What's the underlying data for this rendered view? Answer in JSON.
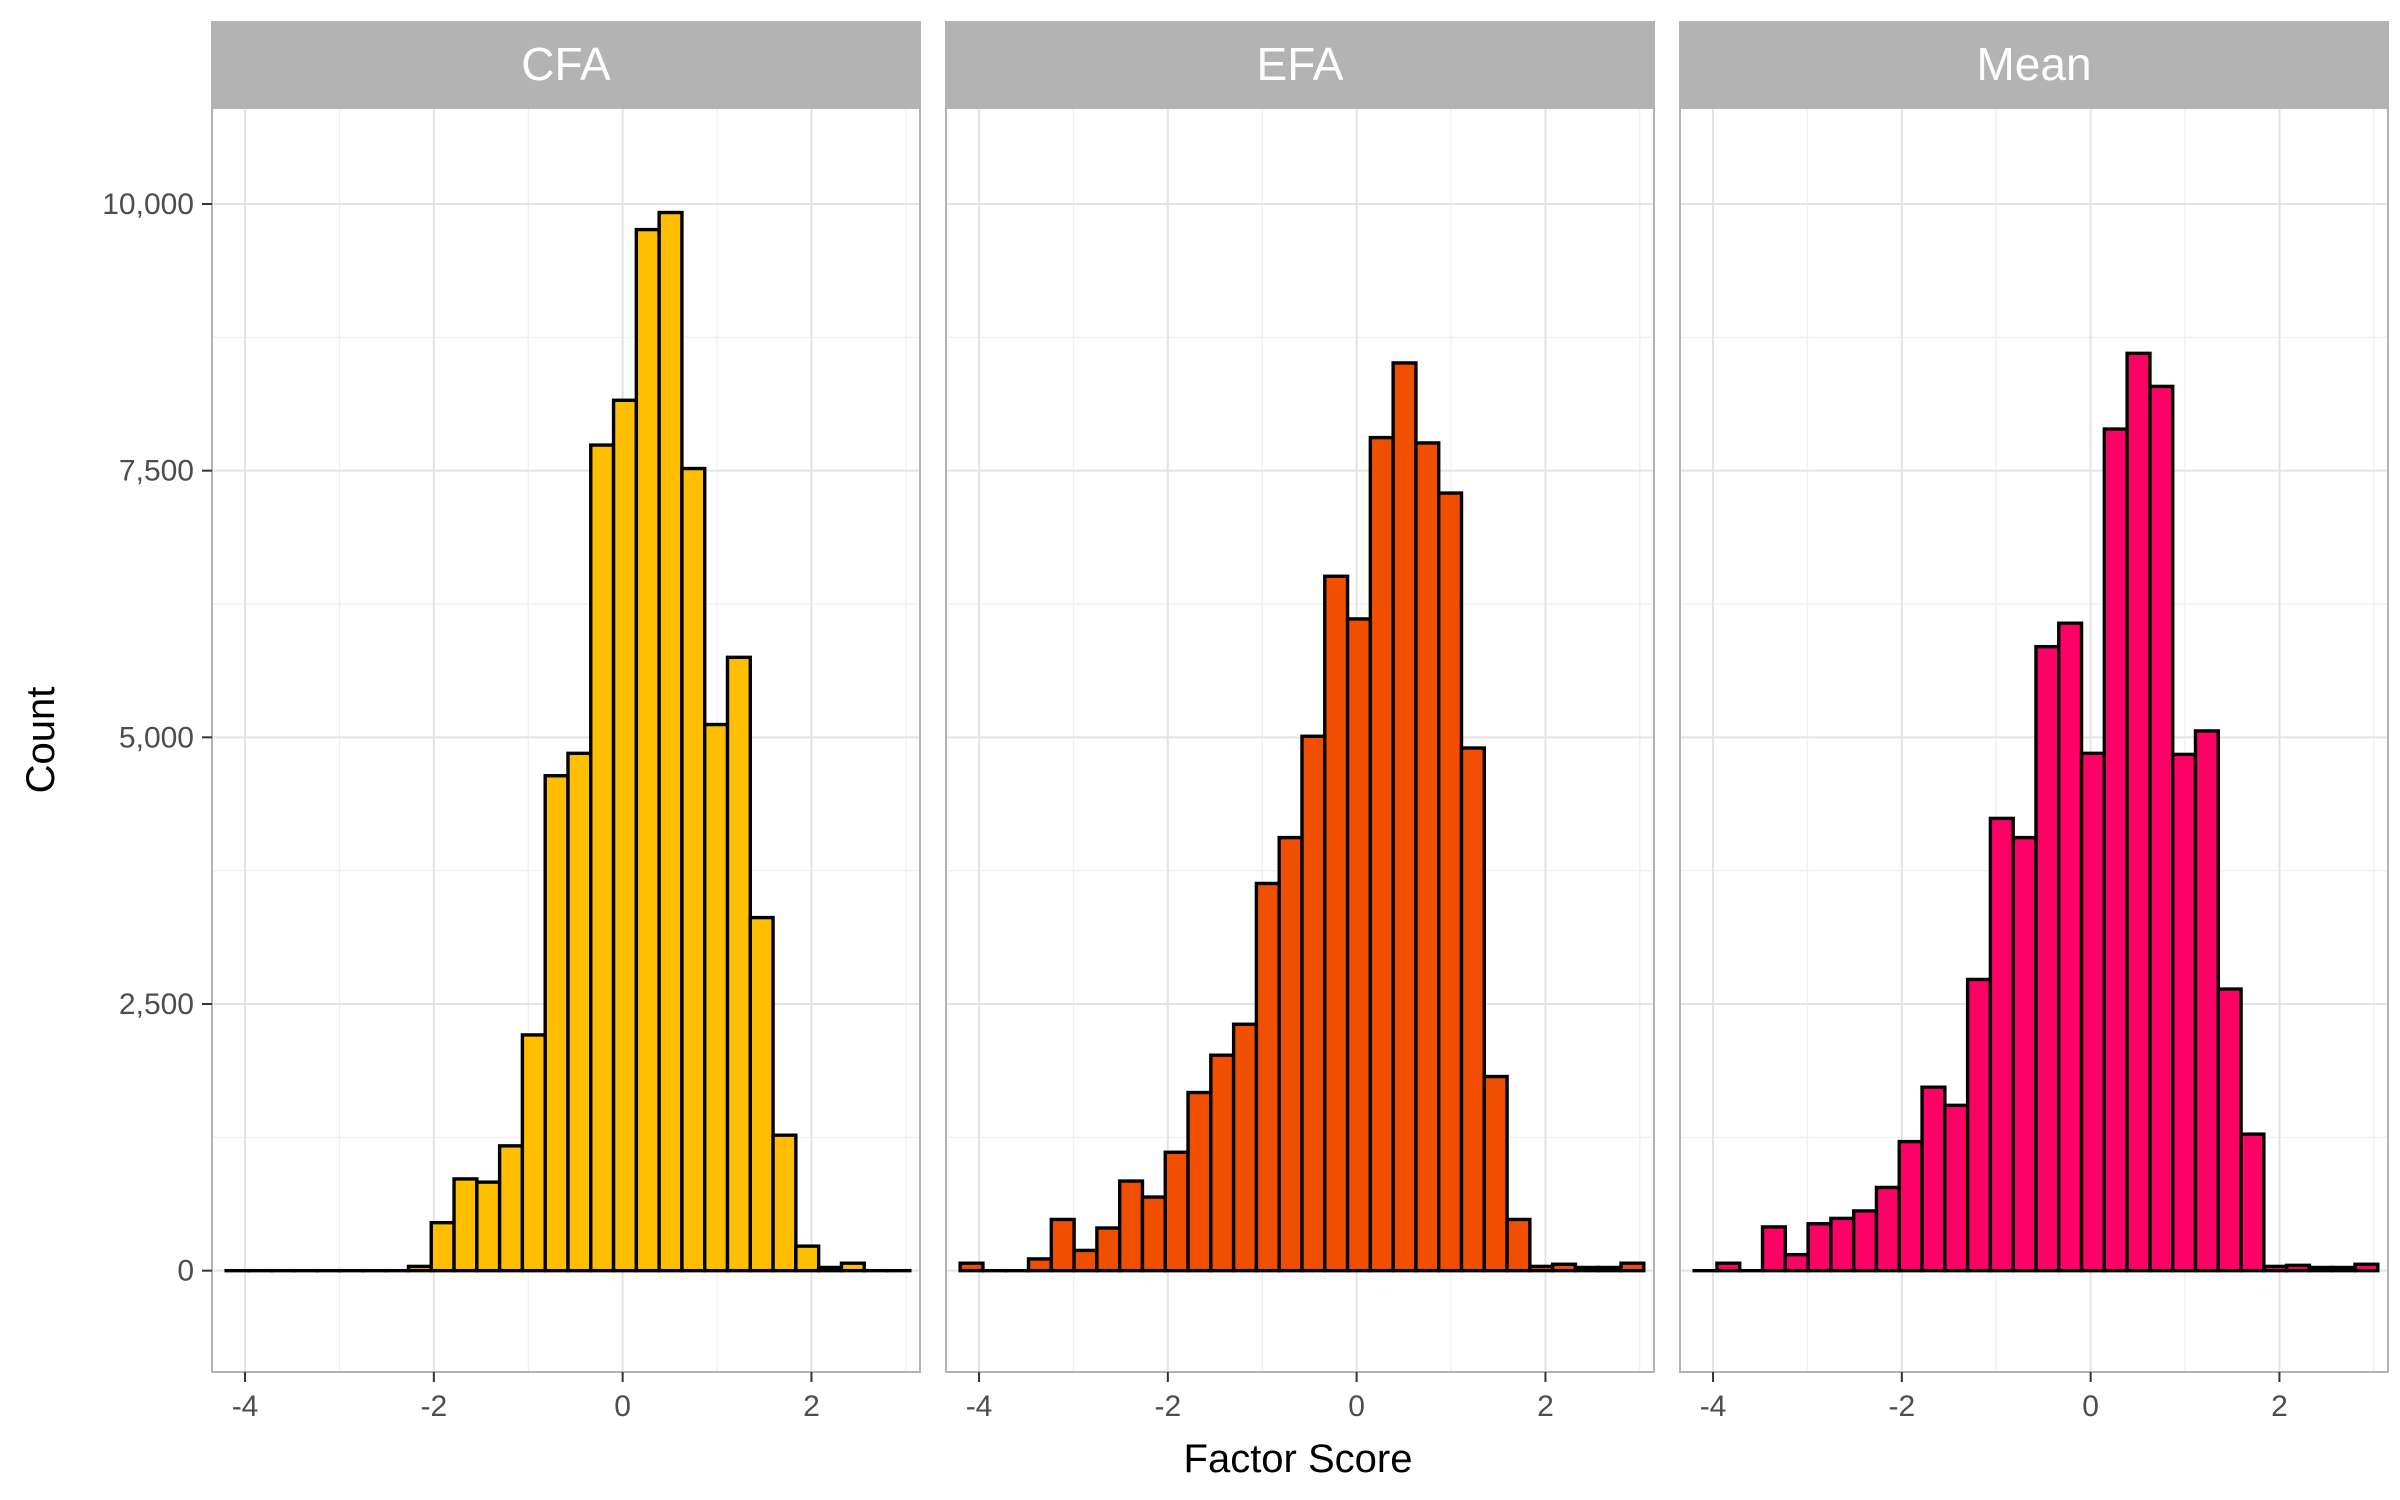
{
  "chart_data": {
    "type": "bar",
    "subtype": "faceted-histogram",
    "xlabel": "Factor Score",
    "ylabel": "Count",
    "xlim": [
      -4.35,
      3.15
    ],
    "ylim": [
      -950,
      10900
    ],
    "x_ticks": [
      -4,
      -2,
      0,
      2
    ],
    "x_tick_labels": [
      "-4",
      "-2",
      "0",
      "2"
    ],
    "y_ticks": [
      0,
      2500,
      5000,
      7500,
      10000
    ],
    "y_tick_labels": [
      "0",
      "2,500",
      "5,000",
      "7,500",
      "10,000"
    ],
    "bin_width": 0.2414,
    "bin_start": -4.2,
    "grid": true,
    "bar_outline_color": "#000000",
    "strip_fill": "#b3b3b3",
    "panels": [
      {
        "label": "CFA",
        "color": "#ffbf00",
        "values": [
          0,
          0,
          0,
          0,
          0,
          0,
          0,
          0,
          40,
          450,
          860,
          830,
          1170,
          2210,
          4640,
          4850,
          7740,
          8160,
          9760,
          9920,
          7520,
          5120,
          5750,
          3310,
          1270,
          230,
          30,
          70,
          0,
          0
        ]
      },
      {
        "label": "EFA",
        "color": "#f04f00",
        "values": [
          70,
          0,
          0,
          110,
          480,
          190,
          400,
          840,
          690,
          1110,
          1670,
          2020,
          2310,
          3630,
          4060,
          5010,
          6510,
          6110,
          7810,
          8510,
          7760,
          7290,
          4900,
          1820,
          480,
          40,
          60,
          30,
          30,
          70
        ]
      },
      {
        "label": "Mean",
        "color": "#ff0066",
        "values": [
          0,
          70,
          0,
          410,
          150,
          440,
          490,
          560,
          780,
          1210,
          1720,
          1550,
          2730,
          4240,
          4060,
          5850,
          6070,
          4850,
          7890,
          8600,
          8290,
          4840,
          5060,
          2640,
          1280,
          40,
          50,
          30,
          30,
          60
        ]
      }
    ]
  }
}
